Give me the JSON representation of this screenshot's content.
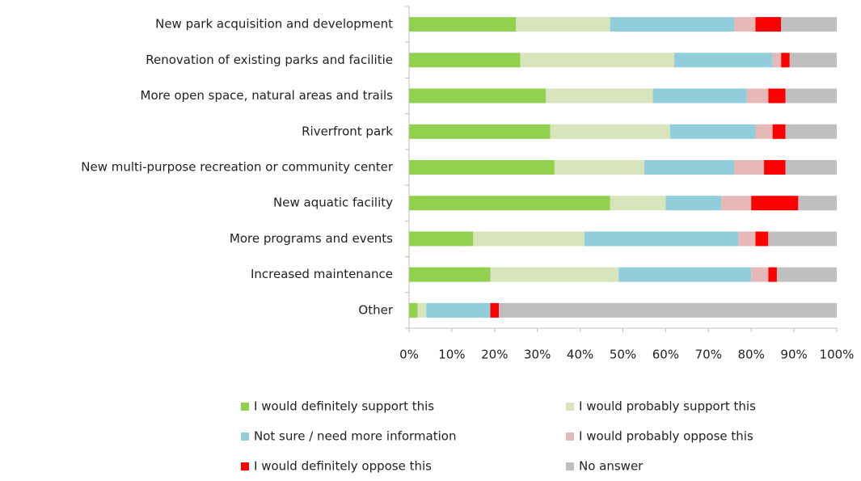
{
  "chart_data": {
    "type": "stacked_bar_horizontal",
    "categories": [
      "New park acquisition and development",
      "Renovation of existing parks and facilitie",
      "More open space, natural areas and trails",
      "Riverfront park",
      "New multi-purpose recreation or community center",
      "New aquatic facility",
      "More programs and events",
      "Increased maintenance",
      "Other"
    ],
    "series": [
      {
        "name": "I would definitely support this",
        "color": "#92d050",
        "values": [
          25,
          26,
          32,
          33,
          34,
          47,
          15,
          19,
          2
        ]
      },
      {
        "name": "I would probably support this",
        "color": "#d8e4bc",
        "values": [
          22,
          36,
          25,
          28,
          21,
          13,
          26,
          30,
          2
        ]
      },
      {
        "name": "Not sure / need more information",
        "color": "#92cddc",
        "values": [
          29,
          23,
          22,
          20,
          21,
          13,
          36,
          31,
          15
        ]
      },
      {
        "name": "I would probably oppose this",
        "color": "#e6b9b8",
        "values": [
          5,
          2,
          5,
          4,
          7,
          7,
          4,
          4,
          0
        ]
      },
      {
        "name": "I would definitely oppose this",
        "color": "#ff0000",
        "values": [
          6,
          2,
          4,
          3,
          5,
          11,
          3,
          2,
          2
        ]
      },
      {
        "name": "No answer",
        "color": "#bfbfbf",
        "values": [
          13,
          11,
          12,
          12,
          12,
          9,
          16,
          14,
          79
        ]
      }
    ],
    "xlim": [
      0,
      100
    ],
    "xticks": [
      {
        "value": 0,
        "label": "0%"
      },
      {
        "value": 10,
        "label": "10%"
      },
      {
        "value": 20,
        "label": "20%"
      },
      {
        "value": 30,
        "label": "30%"
      },
      {
        "value": 40,
        "label": "40%"
      },
      {
        "value": 50,
        "label": "50%"
      },
      {
        "value": 60,
        "label": "60%"
      },
      {
        "value": 70,
        "label": "70%"
      },
      {
        "value": 80,
        "label": "80%"
      },
      {
        "value": 90,
        "label": "90%"
      },
      {
        "value": 100,
        "label": "100%"
      }
    ],
    "legend": "bottom"
  }
}
